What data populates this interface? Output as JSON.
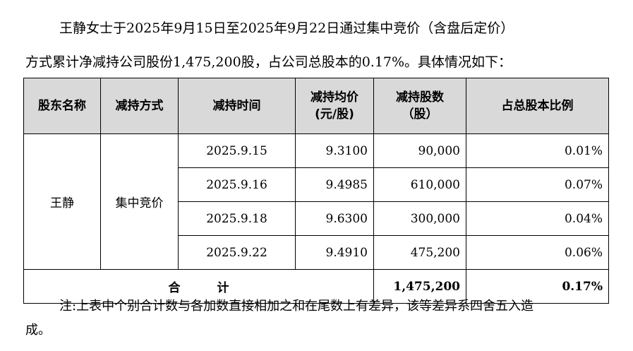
{
  "paragraph": {
    "line1": "王静女士于2025年9月15日至2025年9月22日通过集中竞价（含盘后定价）",
    "line2": "方式累计净减持公司股份1,475,200股，占公司总股本的0.17%。具体情况如下："
  },
  "table": {
    "headers": {
      "name": "股东名称",
      "method": "减持方式",
      "date": "减持时间",
      "price_line1": "减持均价",
      "price_line2": "(元/股)",
      "shares_line1": "减持股数",
      "shares_line2": "（股）",
      "ratio": "占总股本比例"
    },
    "shareholder": "王静",
    "method": "集中竞价",
    "rows": [
      {
        "date": "2025.9.15",
        "price": "9.3100",
        "shares": "90,000",
        "ratio": "0.01%"
      },
      {
        "date": "2025.9.16",
        "price": "9.4985",
        "shares": "610,000",
        "ratio": "0.07%"
      },
      {
        "date": "2025.9.18",
        "price": "9.6300",
        "shares": "300,000",
        "ratio": "0.04%"
      },
      {
        "date": "2025.9.22",
        "price": "9.4910",
        "shares": "475,200",
        "ratio": "0.06%"
      }
    ],
    "total": {
      "label": "合计",
      "shares": "1,475,200",
      "ratio": "0.17%"
    }
  },
  "note": {
    "line1": "注:上表中个别合计数与各加数直接相加之和在尾数上有差异，该等差异系四舍五入造",
    "line2": "成。"
  }
}
